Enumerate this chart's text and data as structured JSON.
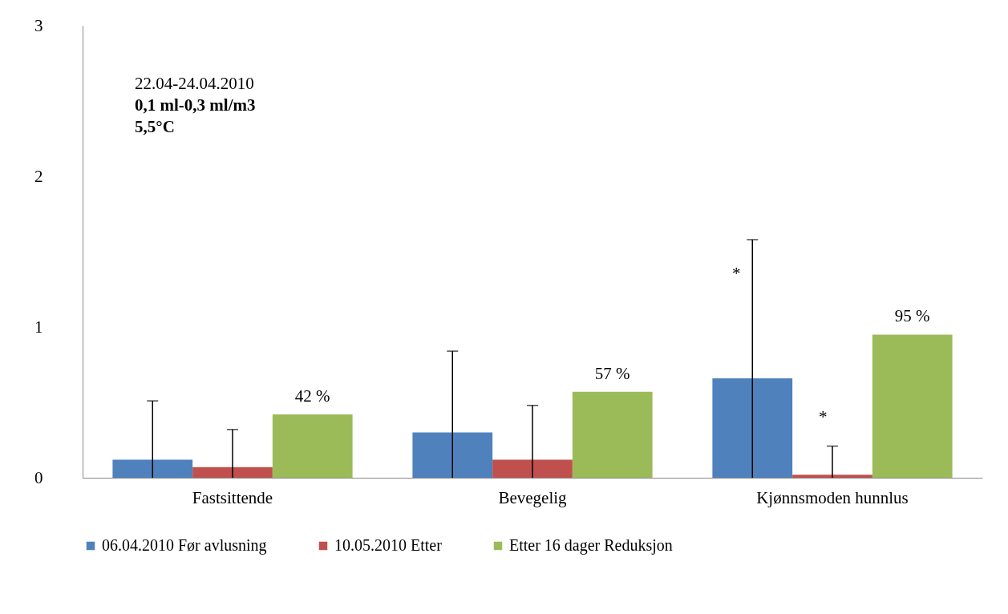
{
  "chart_data": {
    "type": "bar",
    "categories": [
      "Fastsittende",
      "Bevegelig",
      "Kjønnsmoden hunnlus"
    ],
    "series": [
      {
        "name": "06.04.2010 Før avlusning",
        "color": "#4f81bd",
        "values": [
          0.12,
          0.3,
          0.66
        ],
        "errors": [
          [
            0,
            0.51
          ],
          [
            0,
            0.84
          ],
          [
            0,
            1.58
          ]
        ]
      },
      {
        "name": "10.05.2010 Etter",
        "color": "#c0504d",
        "values": [
          0.07,
          0.12,
          0.02
        ],
        "errors": [
          [
            0,
            0.32
          ],
          [
            0,
            0.48
          ],
          [
            0,
            0.21
          ]
        ]
      },
      {
        "name": "Etter 16 dager Reduksjon",
        "color": "#9bbb59",
        "values": [
          0.42,
          0.57,
          0.95
        ],
        "value_labels": [
          "42 %",
          "57 %",
          "95 %"
        ]
      }
    ],
    "ylim": [
      0,
      3
    ],
    "yticks": [
      0,
      1,
      2,
      3
    ],
    "grid": false,
    "legend": "bottom",
    "annotations": [
      "22.04-24.04.2010",
      "0,1 ml-0,3 ml/m3",
      "5,5°C",
      "*",
      "*"
    ]
  }
}
